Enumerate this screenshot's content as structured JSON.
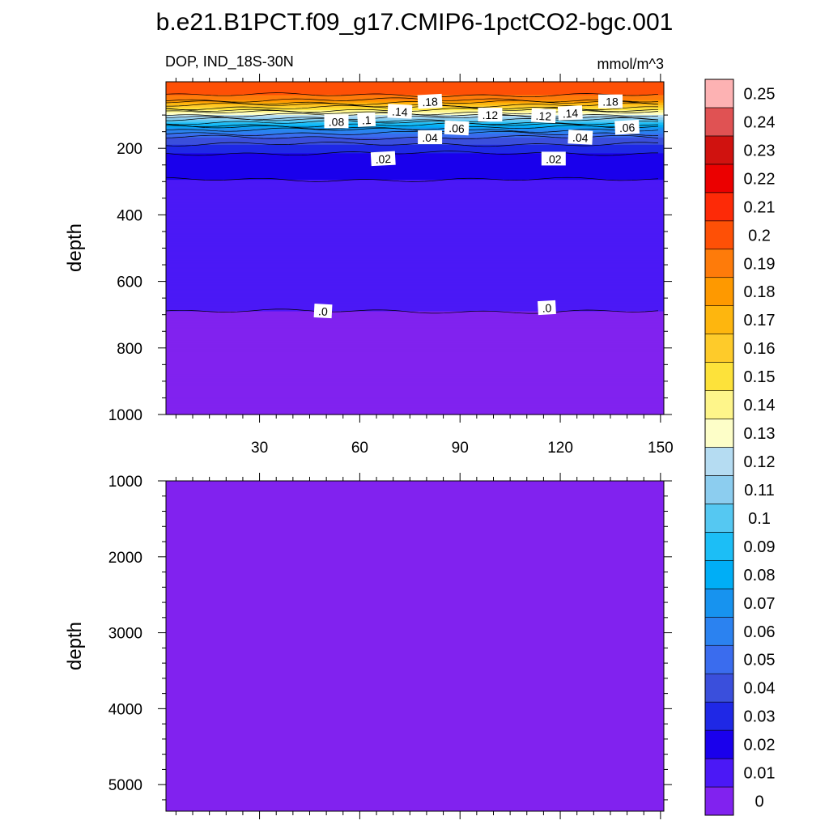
{
  "chart_data": {
    "type": "contour",
    "title": "b.e21.B1PCT.f09_g17.CMIP6-1pctCO2-bgc.001",
    "left_subtitle": "DOP, IND_18S-30N",
    "right_subtitle": "mmol/m^3",
    "x_range": [
      2,
      151
    ],
    "x_ticks": [
      30,
      60,
      90,
      120,
      150
    ],
    "x_tick_labels": [
      "30",
      "60",
      "90",
      "120",
      "150"
    ],
    "panels": [
      {
        "name": "upper",
        "ylabel": "depth",
        "ylim": [
          0,
          1000
        ],
        "y_ticks": [
          200,
          400,
          600,
          800,
          1000
        ],
        "y_tick_labels": [
          "200",
          "400",
          "600",
          "800",
          "1000"
        ],
        "profile": [
          {
            "depth": 0,
            "value": 0.2
          },
          {
            "depth": 20,
            "value": 0.195
          },
          {
            "depth": 40,
            "value": 0.19
          },
          {
            "depth": 55,
            "value": 0.18
          },
          {
            "depth": 70,
            "value": 0.16
          },
          {
            "depth": 85,
            "value": 0.14
          },
          {
            "depth": 100,
            "value": 0.12
          },
          {
            "depth": 115,
            "value": 0.1
          },
          {
            "depth": 130,
            "value": 0.08
          },
          {
            "depth": 145,
            "value": 0.06
          },
          {
            "depth": 160,
            "value": 0.045
          },
          {
            "depth": 175,
            "value": 0.035
          },
          {
            "depth": 200,
            "value": 0.025
          },
          {
            "depth": 230,
            "value": 0.015
          },
          {
            "depth": 320,
            "value": 0.008
          },
          {
            "depth": 690,
            "value": 0.0
          },
          {
            "depth": 1000,
            "value": -0.002
          }
        ],
        "contour_labels": [
          {
            "text": ".18",
            "x": 81,
            "depth": 60
          },
          {
            "text": ".18",
            "x": 135,
            "depth": 60
          },
          {
            "text": ".14",
            "x": 72,
            "depth": 90
          },
          {
            "text": ".14",
            "x": 123,
            "depth": 95
          },
          {
            "text": ".12",
            "x": 99,
            "depth": 100
          },
          {
            "text": ".12",
            "x": 115,
            "depth": 103
          },
          {
            "text": ".1",
            "x": 62,
            "depth": 115
          },
          {
            "text": ".08",
            "x": 53,
            "depth": 120
          },
          {
            "text": ".06",
            "x": 89,
            "depth": 140
          },
          {
            "text": ".06",
            "x": 140,
            "depth": 138
          },
          {
            "text": ".04",
            "x": 81,
            "depth": 168
          },
          {
            "text": ".04",
            "x": 126,
            "depth": 168
          },
          {
            "text": ".02",
            "x": 67,
            "depth": 232
          },
          {
            "text": ".02",
            "x": 118,
            "depth": 232
          },
          {
            "text": ".0",
            "x": 49,
            "depth": 690
          },
          {
            "text": ".0",
            "x": 116,
            "depth": 680
          }
        ]
      },
      {
        "name": "lower",
        "ylabel": "depth",
        "ylim": [
          1000,
          5350
        ],
        "y_ticks": [
          1000,
          2000,
          3000,
          4000,
          5000
        ],
        "y_tick_labels": [
          "1000",
          "2000",
          "3000",
          "4000",
          "5000"
        ],
        "value": -0.002
      }
    ],
    "colorbar": {
      "levels": [
        "0",
        "0.01",
        "0.02",
        "0.03",
        "0.04",
        "0.05",
        "0.06",
        "0.07",
        "0.08",
        "0.09",
        "0.1",
        "0.11",
        "0.12",
        "0.13",
        "0.14",
        "0.15",
        "0.16",
        "0.17",
        "0.18",
        "0.19",
        "0.2",
        "0.21",
        "0.22",
        "0.23",
        "0.24",
        "0.25"
      ],
      "colors": [
        "#8122ef",
        "#4b18f6",
        "#1a00ec",
        "#1f28e6",
        "#3a4fdc",
        "#3a6cee",
        "#2b82f0",
        "#1793ef",
        "#00aef6",
        "#1cbef6",
        "#55c8f2",
        "#8ccdef",
        "#b5dcf2",
        "#fdfec8",
        "#fef58a",
        "#fde23a",
        "#fecb2a",
        "#feb60e",
        "#fe9900",
        "#fe7b0a",
        "#fe5006",
        "#fd2a07",
        "#eb0000",
        "#d0120f",
        "#e05253",
        "#fdb2b3"
      ]
    }
  }
}
